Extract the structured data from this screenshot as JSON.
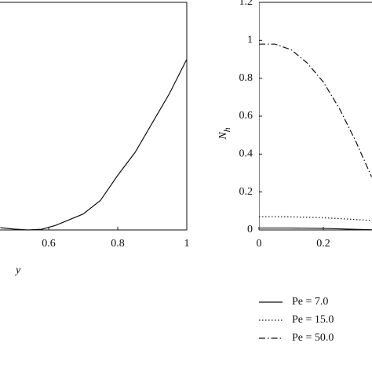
{
  "chart_data": [
    {
      "type": "line",
      "xlabel": "y",
      "xlim": [
        0,
        1
      ],
      "ylim": [
        0,
        1
      ],
      "xticks": [
        0.6,
        0.8,
        1
      ],
      "x": [
        0.46,
        0.5,
        0.54,
        0.58,
        0.62,
        0.66,
        0.7,
        0.75,
        0.8,
        0.85,
        0.9,
        0.95,
        1.0
      ],
      "series": [
        {
          "color": "#111",
          "dash": "solid",
          "values": [
            0.01,
            0.004,
            0,
            0.003,
            0.02,
            0.045,
            0.07,
            0.13,
            0.24,
            0.34,
            0.47,
            0.6,
            0.75
          ]
        }
      ]
    },
    {
      "type": "line",
      "ylabel": "N",
      "ylabel_subscript": "h",
      "xlim": [
        0,
        1
      ],
      "ylim": [
        0,
        1.2
      ],
      "xticks": [
        0,
        0.2
      ],
      "yticks": [
        0,
        0.2,
        0.4,
        0.6,
        0.8,
        1,
        1.2
      ],
      "x": [
        0,
        0.05,
        0.1,
        0.15,
        0.2,
        0.25,
        0.3,
        0.35
      ],
      "series": [
        {
          "name": "Pe = 7.0",
          "color": "#111",
          "dash": "solid",
          "values": [
            0.01,
            0.01,
            0.01,
            0.009,
            0.008,
            0.006,
            0.003,
            0.001
          ]
        },
        {
          "name": "Pe = 15.0",
          "color": "#111",
          "dash": "dotted",
          "values": [
            0.07,
            0.07,
            0.069,
            0.067,
            0.064,
            0.06,
            0.055,
            0.05
          ]
        },
        {
          "name": "Pe = 50.0",
          "color": "#111",
          "dash": "dashdot",
          "values": [
            0.98,
            0.98,
            0.95,
            0.88,
            0.78,
            0.64,
            0.47,
            0.28
          ]
        }
      ]
    }
  ]
}
